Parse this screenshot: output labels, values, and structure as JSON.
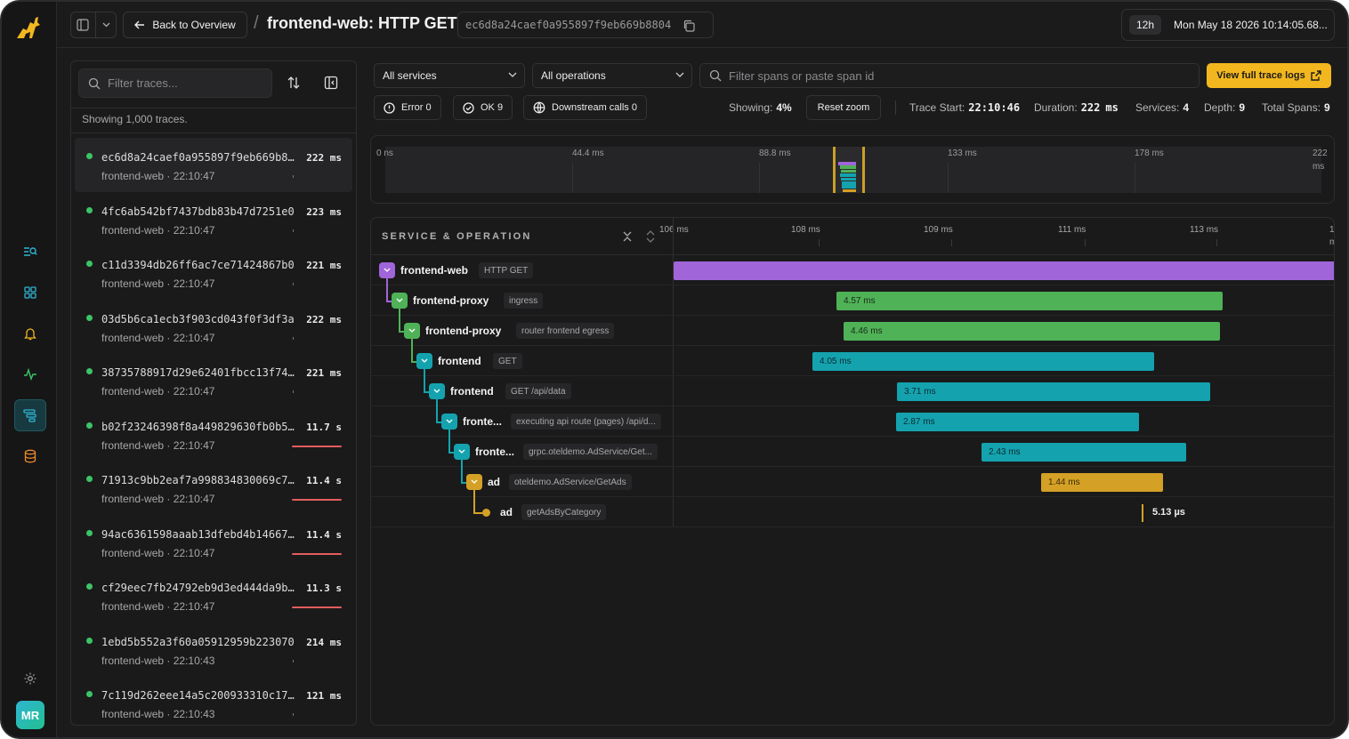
{
  "topbar": {
    "back_label": "Back to Overview",
    "title": "frontend-web: HTTP GET",
    "trace_id": "ec6d8a24caef0a955897f9eb669b8804",
    "range": "12h",
    "datetime": "Mon May 18 2026 10:14:05.68..."
  },
  "sidebar": {
    "avatar": "MR",
    "icons": [
      "explore-icon",
      "dashboards-icon",
      "alerts-icon",
      "metrics-icon",
      "traces-icon",
      "database-icon",
      "settings-icon"
    ]
  },
  "traces": {
    "filter_placeholder": "Filter traces...",
    "showing": "Showing 1,000 traces.",
    "items": [
      {
        "id": "ec6d8a24caef0a955897f9eb669b8804",
        "dur": "222 ms",
        "svc": "frontend-web",
        "time": "22:10:47",
        "err": false
      },
      {
        "id": "4fc6ab542bf7437bdb83b47d7251e0",
        "dur": "223 ms",
        "svc": "frontend-web",
        "time": "22:10:47",
        "err": false
      },
      {
        "id": "c11d3394db26ff6ac7ce71424867b0",
        "dur": "221 ms",
        "svc": "frontend-web",
        "time": "22:10:47",
        "err": false
      },
      {
        "id": "03d5b6ca1ecb3f903cd043f0f3df3a",
        "dur": "222 ms",
        "svc": "frontend-web",
        "time": "22:10:47",
        "err": false
      },
      {
        "id": "38735788917d29e62401fbcc13f7400",
        "dur": "221 ms",
        "svc": "frontend-web",
        "time": "22:10:47",
        "err": false
      },
      {
        "id": "b02f23246398f8a449829630fb0b51e",
        "dur": "11.7 s",
        "svc": "frontend-web",
        "time": "22:10:47",
        "err": true
      },
      {
        "id": "71913c9bb2eaf7a998834830069c73d",
        "dur": "11.4 s",
        "svc": "frontend-web",
        "time": "22:10:47",
        "err": true
      },
      {
        "id": "94ac6361598aaab13dfebd4b14667d0",
        "dur": "11.4 s",
        "svc": "frontend-web",
        "time": "22:10:47",
        "err": true
      },
      {
        "id": "cf29eec7fb24792eb9d3ed444da9bf0",
        "dur": "11.3 s",
        "svc": "frontend-web",
        "time": "22:10:47",
        "err": true
      },
      {
        "id": "1ebd5b552a3f60a05912959b223070",
        "dur": "214 ms",
        "svc": "frontend-web",
        "time": "22:10:43",
        "err": false
      },
      {
        "id": "7c119d262eee14a5c200933310c1700",
        "dur": "121 ms",
        "svc": "frontend-web",
        "time": "22:10:43",
        "err": false
      }
    ]
  },
  "filters": {
    "services": "All services",
    "operations": "All operations",
    "span_placeholder": "Filter spans or paste span id",
    "logs_btn": "View full trace logs"
  },
  "chips": {
    "error": "Error 0",
    "ok": "OK 9",
    "downstream": "Downstream calls 0"
  },
  "stats": {
    "showing_label": "Showing:",
    "showing_value": "4%",
    "reset": "Reset zoom",
    "start_label": "Trace Start:",
    "start_value": "22:10:46",
    "duration_label": "Duration:",
    "duration_value": "222",
    "duration_unit": "ms",
    "services_label": "Services:",
    "services_value": "4",
    "depth_label": "Depth:",
    "depth_value": "9",
    "spans_label": "Total Spans:",
    "spans_value": "9"
  },
  "minimap": {
    "ticks": [
      "0 ns",
      "44.4 ms",
      "88.8 ms",
      "133 ms",
      "178 ms",
      "222",
      "ms"
    ],
    "selection_start_fraction": 0.478,
    "selection_end_fraction": 0.512
  },
  "waterfall": {
    "header": "SERVICE & OPERATION",
    "axis": [
      "106 ms",
      "108 ms",
      "109 ms",
      "111 ms",
      "113 ms",
      "11",
      "m"
    ],
    "colors": {
      "purple": "#a065d8",
      "green": "#4fb257",
      "teal": "#14a3ae",
      "gold": "#d4a126"
    },
    "spans": [
      {
        "service": "frontend-web",
        "op": "HTTP GET",
        "dur": "",
        "color": "purple",
        "depth": 0
      },
      {
        "service": "frontend-proxy",
        "op": "ingress",
        "dur": "4.57 ms",
        "color": "green",
        "depth": 1
      },
      {
        "service": "frontend-proxy",
        "op": "router frontend egress",
        "dur": "4.46 ms",
        "color": "green",
        "depth": 2
      },
      {
        "service": "frontend",
        "op": "GET",
        "dur": "4.05 ms",
        "color": "teal",
        "depth": 3
      },
      {
        "service": "frontend",
        "op": "GET /api/data",
        "dur": "3.71 ms",
        "color": "teal",
        "depth": 4
      },
      {
        "service": "fronte...",
        "op": "executing api route (pages) /api/d...",
        "dur": "2.87 ms",
        "color": "teal",
        "depth": 5
      },
      {
        "service": "fronte...",
        "op": "grpc.oteldemo.AdService/Get...",
        "dur": "2.43 ms",
        "color": "teal",
        "depth": 6
      },
      {
        "service": "ad",
        "op": "oteldemo.AdService/GetAds",
        "dur": "1.44 ms",
        "color": "gold",
        "depth": 7
      },
      {
        "service": "ad",
        "op": "getAdsByCategory",
        "dur": "5.13 µs",
        "color": "gold",
        "depth": 8
      }
    ]
  }
}
